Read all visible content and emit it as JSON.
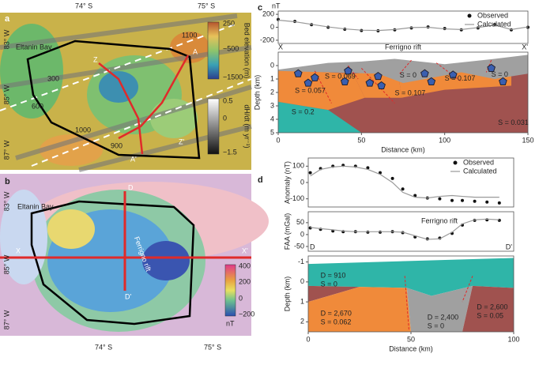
{
  "maps": {
    "a": {
      "panel": "a",
      "lat_labels": [
        "74° S",
        "75° S"
      ],
      "lon_labels": [
        "83° W",
        "85° W",
        "87° W"
      ],
      "place": "Eltanin Bay",
      "points": [
        "A",
        "A'",
        "Z",
        "Z'"
      ],
      "contours": [
        "1100",
        "300",
        "600",
        "1000",
        "900"
      ],
      "colorbar_elevation": {
        "ticks": [
          "250",
          "−500",
          "−1500"
        ],
        "title": "Bed elevation (m)"
      },
      "colorbar_thinning": {
        "ticks": [
          "0.5",
          "0",
          "−1.5"
        ],
        "title": "dH/dt (m yr⁻¹)"
      }
    },
    "b": {
      "panel": "b",
      "lat_labels": [
        "74° S",
        "75° S"
      ],
      "lon_labels": [
        "83° W",
        "85° W",
        "87° W"
      ],
      "place": "Eltanin Bay",
      "points": [
        "D",
        "D'",
        "X",
        "X'"
      ],
      "rift": "Ferrigno rift",
      "colorbar": {
        "ticks": [
          "400",
          "200",
          "0",
          "−200"
        ],
        "unit": "nT"
      }
    }
  },
  "chart_data": [
    {
      "type": "line",
      "panel": "c",
      "ylabel": "nT",
      "x": [
        0,
        10,
        20,
        30,
        40,
        50,
        60,
        70,
        80,
        90,
        100,
        110,
        120,
        130,
        140,
        150
      ],
      "xlim": [
        0,
        150
      ],
      "ylim": [
        -250,
        250
      ],
      "yticks": [
        200,
        0,
        -200
      ],
      "legend": "upper right",
      "series": [
        {
          "name": "Observed",
          "color": "#111111",
          "style": "points",
          "values": [
            120,
            90,
            40,
            0,
            -30,
            -50,
            -55,
            -40,
            -10,
            5,
            -20,
            -40,
            -10,
            40,
            -40,
            0
          ]
        },
        {
          "name": "Calculated",
          "color": "#999999",
          "style": "line",
          "values": [
            110,
            85,
            45,
            5,
            -25,
            -45,
            -50,
            -35,
            -5,
            0,
            -25,
            -35,
            -5,
            35,
            -35,
            5
          ]
        }
      ]
    },
    {
      "type": "section",
      "title": "Ferrigno rift",
      "end_labels": [
        "X",
        "X'"
      ],
      "xlabel": "Distance (km)",
      "ylabel": "Depth (km)",
      "xlim": [
        0,
        150
      ],
      "ylim": [
        5,
        -1
      ],
      "xticks": [
        0,
        50,
        100,
        150
      ],
      "yticks": [
        0,
        1,
        2,
        3,
        4,
        5
      ],
      "annotations": [
        [
          "S = 0.057"
        ],
        [
          "S = 0.069"
        ],
        [
          "S = 0"
        ],
        [
          "S = 0.107"
        ],
        [
          "S = 0.107"
        ],
        [
          "S = 0"
        ],
        [
          "S = 0.2"
        ],
        [
          "S = 0.031"
        ]
      ]
    },
    {
      "type": "line",
      "panel": "d",
      "ylabel": "Anomaly (nT)",
      "x": [
        1,
        6,
        12,
        17,
        23,
        29,
        35,
        41,
        46,
        52,
        58,
        64,
        70,
        75,
        81,
        87,
        93
      ],
      "xlim": [
        0,
        100
      ],
      "ylim": [
        -150,
        150
      ],
      "yticks": [
        100,
        0,
        -100
      ],
      "legend": "upper right",
      "series": [
        {
          "name": "Observed",
          "color": "#111111",
          "style": "points",
          "values": [
            60,
            85,
            100,
            105,
            100,
            90,
            60,
            25,
            -40,
            -80,
            -95,
            -100,
            -110,
            -110,
            -115,
            -120,
            -125
          ]
        },
        {
          "name": "Calculated",
          "color": "#999999",
          "style": "line",
          "values": [
            40,
            80,
            95,
            100,
            95,
            80,
            50,
            0,
            -60,
            -90,
            -95,
            -85,
            -80,
            -85,
            -90,
            -90,
            -90
          ]
        }
      ]
    },
    {
      "type": "line",
      "ylabel": "FAA (mGal)",
      "annotation": "Ferrigno rift",
      "end_labels": [
        "D",
        "D'"
      ],
      "x": [
        1,
        6,
        12,
        17,
        23,
        29,
        35,
        41,
        46,
        52,
        58,
        64,
        70,
        75,
        81,
        87,
        93
      ],
      "xlim": [
        0,
        100
      ],
      "ylim": [
        -70,
        96
      ],
      "yticks": [
        50,
        0,
        -50
      ],
      "series": [
        {
          "color": "#111111",
          "style": "points",
          "values": [
            28,
            22,
            15,
            12,
            12,
            10,
            10,
            12,
            8,
            -10,
            -18,
            -15,
            5,
            40,
            60,
            62,
            60
          ]
        },
        {
          "color": "#999999",
          "style": "line",
          "values": [
            30,
            25,
            20,
            15,
            12,
            12,
            12,
            12,
            10,
            -5,
            -20,
            -18,
            10,
            45,
            62,
            65,
            62
          ]
        }
      ]
    },
    {
      "type": "section",
      "xlabel": "Distance (km)",
      "ylabel": "Depth (km)",
      "xlim": [
        0,
        100
      ],
      "ylim": [
        2.5,
        -1.3
      ],
      "xticks": [
        0,
        50,
        100
      ],
      "yticks": [
        -1,
        0,
        1,
        2
      ],
      "annotations": [
        [
          "D = 910",
          "S = 0"
        ],
        [
          "D = 2,670",
          "S = 0.062"
        ],
        [
          "D = 2,400",
          "S = 0"
        ],
        [
          "D = 2,600",
          "S = 0.05"
        ]
      ]
    }
  ]
}
